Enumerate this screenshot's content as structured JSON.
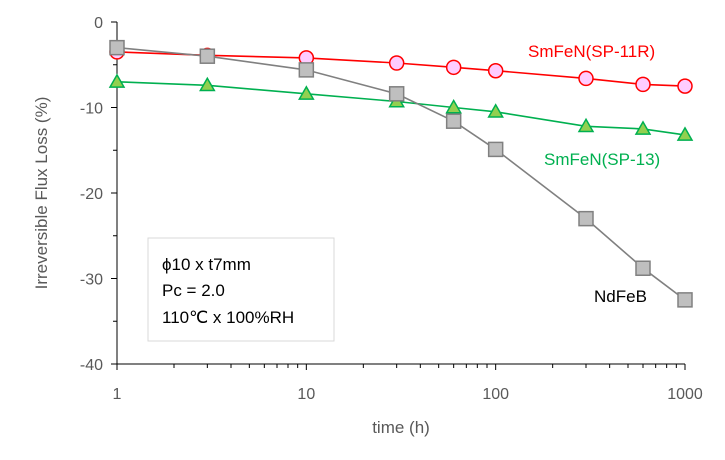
{
  "chart_data": {
    "type": "line",
    "xscale": "log",
    "xlabel": "time (h)",
    "ylabel": "Irreversible Flux Loss (%)",
    "xlim": [
      1,
      1000
    ],
    "ylim": [
      -40,
      0
    ],
    "x_ticks": [
      "1",
      "10",
      "100",
      "1000"
    ],
    "y_ticks": [
      "0",
      "-10",
      "-20",
      "-30",
      "-40"
    ],
    "grid": false,
    "series": [
      {
        "name": "SmFeN(SP-11R)",
        "color": "#ff0000",
        "marker": "circle",
        "marker_fill": "#ffccff",
        "points": [
          [
            1,
            -3.5
          ],
          [
            3,
            -3.9
          ],
          [
            10,
            -4.2
          ],
          [
            30,
            -4.8
          ],
          [
            60,
            -5.3
          ],
          [
            100,
            -5.7
          ],
          [
            300,
            -6.6
          ],
          [
            600,
            -7.3
          ],
          [
            1000,
            -7.5
          ]
        ]
      },
      {
        "name": "SmFeN(SP-13)",
        "color": "#00b050",
        "marker": "triangle",
        "marker_fill": "#92d050",
        "points": [
          [
            1,
            -7.0
          ],
          [
            3,
            -7.4
          ],
          [
            10,
            -8.4
          ],
          [
            30,
            -9.3
          ],
          [
            60,
            -10.0
          ],
          [
            100,
            -10.5
          ],
          [
            300,
            -12.2
          ],
          [
            600,
            -12.5
          ],
          [
            1000,
            -13.2
          ]
        ]
      },
      {
        "name": "NdFeB",
        "color": "#808080",
        "marker": "square",
        "marker_fill": "#bfbfbf",
        "points": [
          [
            1,
            -3.0
          ],
          [
            3,
            -4.0
          ],
          [
            10,
            -5.6
          ],
          [
            30,
            -8.4
          ],
          [
            60,
            -11.6
          ],
          [
            100,
            -14.9
          ],
          [
            300,
            -23.0
          ],
          [
            600,
            -28.8
          ],
          [
            1000,
            -32.5
          ]
        ]
      }
    ],
    "annotation": {
      "lines": [
        "ϕ10 x t7mm",
        "Pc = 2.0",
        "110℃ x 100%RH"
      ]
    }
  }
}
